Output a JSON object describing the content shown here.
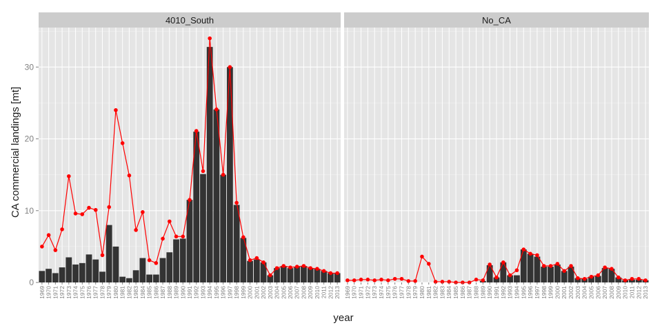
{
  "chart_data": {
    "type": "bar",
    "xlabel": "year",
    "ylabel": "CA commercial landings [mt]",
    "ylim": [
      0,
      35.5
    ],
    "yticks": [
      0,
      10,
      20,
      30
    ],
    "grid": true,
    "x": [
      1969,
      1970,
      1971,
      1972,
      1973,
      1974,
      1975,
      1976,
      1977,
      1978,
      1979,
      1980,
      1981,
      1982,
      1983,
      1984,
      1985,
      1986,
      1987,
      1988,
      1989,
      1990,
      1991,
      1992,
      1993,
      1994,
      1995,
      1996,
      1997,
      1998,
      1999,
      2000,
      2001,
      2002,
      2003,
      2004,
      2005,
      2006,
      2007,
      2008,
      2009,
      2010,
      2011,
      2012,
      2013
    ],
    "x_labels": [
      "1969",
      "1970",
      "1971",
      "1972",
      "1973",
      "1974",
      "1975",
      "1976",
      "1977",
      "1978",
      "1979",
      "1980",
      "1981",
      "1982",
      "1983",
      "1984",
      "1985",
      "1986",
      "1987",
      "1988",
      "1989",
      "1990",
      "1991",
      "1992",
      "1993",
      "1994",
      "1995",
      "1996",
      "1997",
      "1998",
      "1999",
      "2000",
      "2001",
      "2002",
      "2003",
      "2004",
      "2005",
      "2006",
      "2007",
      "2008",
      "2009",
      "2010",
      "2011",
      "2012",
      "2013"
    ],
    "colors": {
      "bar": "#333333",
      "line": "#ff0000",
      "panel": "#e5e5e5",
      "grid": "#ffffff",
      "strip": "#cccccc"
    },
    "panels": [
      {
        "title": "4010_South",
        "bars": [
          1.6,
          1.9,
          1.3,
          2.1,
          3.5,
          2.5,
          2.7,
          3.9,
          3.2,
          1.5,
          8.0,
          5.0,
          0.8,
          0.6,
          1.7,
          3.4,
          1.1,
          1.1,
          3.4,
          4.2,
          6.0,
          6.1,
          11.5,
          21.0,
          15.1,
          32.8,
          24.1,
          15.0,
          30.0,
          10.8,
          6.2,
          3.0,
          3.2,
          2.8,
          1.0,
          2.0,
          2.3,
          2.0,
          2.2,
          2.3,
          2.0,
          1.9,
          1.6,
          1.3,
          1.3
        ],
        "line": [
          5.0,
          6.6,
          4.5,
          7.4,
          14.8,
          9.6,
          9.5,
          10.4,
          10.1,
          3.8,
          10.5,
          24.0,
          19.4,
          14.9,
          7.3,
          9.8,
          3.1,
          2.7,
          6.1,
          8.5,
          6.4,
          6.4,
          11.5,
          21.1,
          15.5,
          34.0,
          24.1,
          15.0,
          30.0,
          11.1,
          6.3,
          3.1,
          3.4,
          2.8,
          1.0,
          2.0,
          2.3,
          2.1,
          2.2,
          2.3,
          2.0,
          1.9,
          1.6,
          1.3,
          1.3
        ]
      },
      {
        "title": "No_CA",
        "bars": [
          0,
          0,
          0,
          0,
          0,
          0,
          0,
          0,
          0,
          0,
          0,
          0,
          0,
          0,
          0,
          0,
          0,
          0,
          0,
          0,
          0.2,
          2.4,
          0.7,
          2.8,
          1.0,
          1.0,
          4.6,
          4.0,
          3.6,
          2.2,
          2.2,
          2.5,
          1.6,
          2.2,
          0.6,
          0.5,
          0.8,
          0.9,
          2.0,
          1.9,
          0.7,
          0.3,
          0.4,
          0.4,
          0.3
        ],
        "line": [
          0.3,
          0.3,
          0.4,
          0.4,
          0.3,
          0.4,
          0.3,
          0.5,
          0.5,
          0.2,
          0.2,
          3.6,
          2.6,
          0.1,
          0.1,
          0.1,
          0.0,
          0.0,
          0.0,
          0.4,
          0.3,
          2.5,
          0.7,
          2.8,
          1.0,
          1.7,
          4.6,
          4.0,
          3.8,
          2.3,
          2.3,
          2.6,
          1.6,
          2.3,
          0.6,
          0.5,
          0.8,
          1.0,
          2.1,
          1.9,
          0.7,
          0.3,
          0.5,
          0.5,
          0.3
        ]
      }
    ]
  }
}
